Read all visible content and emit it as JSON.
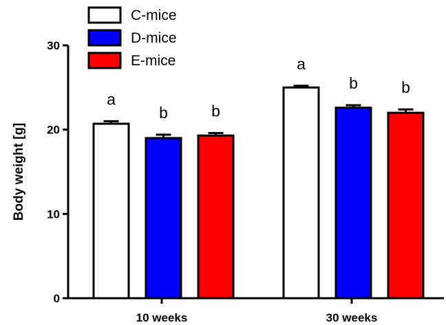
{
  "chart_data": {
    "type": "bar",
    "categories": [
      "10 weeks",
      "30 weeks"
    ],
    "series": [
      {
        "name": "C-mice",
        "color": "#ffffff",
        "values": [
          20.7,
          25.0
        ],
        "errors": [
          0.3,
          0.2
        ],
        "letters": [
          "a",
          "a"
        ]
      },
      {
        "name": "D-mice",
        "color": "#0000ff",
        "values": [
          19.0,
          22.6
        ],
        "errors": [
          0.4,
          0.3
        ],
        "letters": [
          "b",
          "b"
        ]
      },
      {
        "name": "E-mice",
        "color": "#ff0000",
        "values": [
          19.3,
          22.0
        ],
        "errors": [
          0.3,
          0.4
        ],
        "letters": [
          "b",
          "b"
        ]
      }
    ],
    "ylabel": "Body weight [g]",
    "xlabel": "",
    "ylim": [
      0,
      30
    ],
    "yticks": [
      0,
      10,
      20,
      30
    ],
    "legend_position": "top-left",
    "grid": false
  }
}
